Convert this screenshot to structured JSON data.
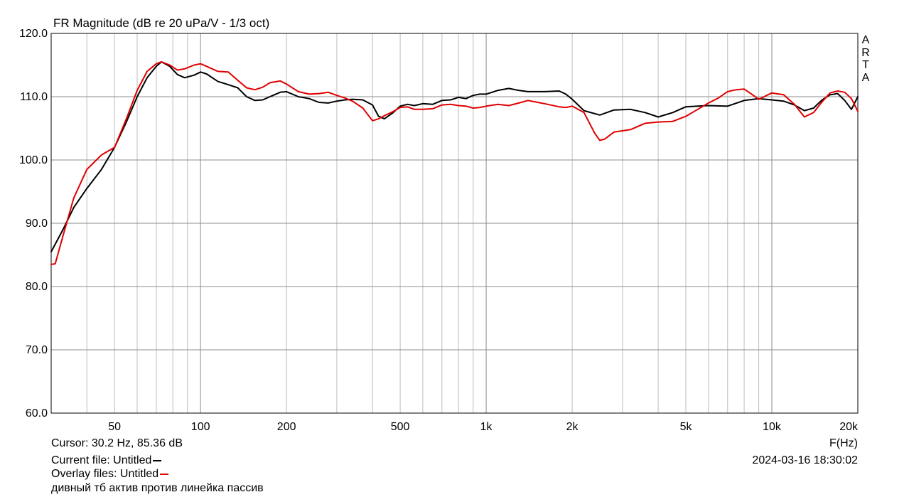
{
  "title": "FR Magnitude (dB re 20 uPa/V - 1/3 oct)",
  "brand": "ARTA",
  "colors": {
    "current": "#000000",
    "overlay": "#e00000",
    "grid_major": "#8c8c8c",
    "grid_minor": "#bdbdbd"
  },
  "footer": {
    "cursor": "Cursor: 30.2 Hz, 85.36 dB",
    "current_file": "Current file: Untitled",
    "overlay_files": "Overlay files: Untitled",
    "comment": "дивный тб актив против линейка пассив",
    "xunit": "F(Hz)",
    "datetime": "2024-03-16  18:30:02"
  },
  "chart_data": {
    "type": "line",
    "title": "FR Magnitude (dB re 20 uPa/V - 1/3 oct)",
    "xlabel": "F(Hz)",
    "ylabel": "",
    "xscale": "log",
    "xlim": [
      30,
      20000
    ],
    "ylim": [
      60,
      120
    ],
    "grid": true,
    "yticks": [
      60,
      70,
      80,
      90,
      100,
      110,
      120
    ],
    "ytick_labels": [
      "60.0",
      "70.0",
      "80.0",
      "90.0",
      "100.0",
      "110.0",
      "120.0"
    ],
    "xticks": [
      50,
      100,
      200,
      500,
      1000,
      2000,
      5000,
      10000,
      20000
    ],
    "xtick_labels": [
      "50",
      "100",
      "200",
      "500",
      "1k",
      "2k",
      "5k",
      "10k",
      "20k"
    ],
    "series": [
      {
        "name": "Untitled",
        "color": "#000000",
        "x": [
          30,
          33,
          36,
          40,
          45,
          50,
          55,
          60,
          65,
          70,
          73,
          78,
          83,
          88,
          95,
          100,
          105,
          115,
          125,
          135,
          145,
          155,
          165,
          175,
          190,
          200,
          220,
          240,
          260,
          280,
          300,
          320,
          340,
          370,
          400,
          420,
          440,
          470,
          500,
          530,
          560,
          600,
          650,
          700,
          750,
          800,
          850,
          900,
          950,
          1000,
          1100,
          1200,
          1300,
          1400,
          1600,
          1800,
          1900,
          2000,
          2200,
          2500,
          2800,
          3200,
          3600,
          4000,
          4500,
          5000,
          5500,
          6000,
          7000,
          8000,
          9000,
          10000,
          11000,
          12000,
          13000,
          14000,
          15000,
          16000,
          17000,
          18000,
          19000,
          20000
        ],
        "y": [
          85.5,
          89,
          92.5,
          95.5,
          98.5,
          102,
          106,
          110,
          113,
          114.8,
          115.5,
          114.8,
          113.5,
          113,
          113.4,
          113.9,
          113.6,
          112.4,
          111.9,
          111.4,
          110,
          109.4,
          109.5,
          110,
          110.7,
          110.8,
          110,
          109.7,
          109.1,
          109,
          109.3,
          109.5,
          109.6,
          109.5,
          108.7,
          106.9,
          106.5,
          107.4,
          108.5,
          108.8,
          108.6,
          108.9,
          108.8,
          109.4,
          109.5,
          109.9,
          109.7,
          110.2,
          110.4,
          110.4,
          111,
          111.3,
          111,
          110.8,
          110.8,
          110.9,
          110.4,
          109.6,
          107.8,
          107.1,
          107.9,
          108,
          107.5,
          106.8,
          107.5,
          108.4,
          108.5,
          108.6,
          108.5,
          109.4,
          109.7,
          109.5,
          109.3,
          108.7,
          107.8,
          108.2,
          109.5,
          110.3,
          110.5,
          109.4,
          108,
          110
        ]
      },
      {
        "name": "Untitled",
        "color": "#e00000",
        "x": [
          30,
          31,
          33,
          36,
          40,
          45,
          50,
          55,
          60,
          65,
          70,
          73,
          78,
          83,
          88,
          95,
          100,
          105,
          115,
          125,
          135,
          145,
          155,
          165,
          175,
          190,
          200,
          220,
          240,
          260,
          280,
          300,
          320,
          340,
          370,
          400,
          420,
          440,
          470,
          500,
          530,
          560,
          600,
          650,
          700,
          750,
          800,
          850,
          900,
          950,
          1000,
          1100,
          1200,
          1300,
          1400,
          1600,
          1800,
          1900,
          2000,
          2200,
          2400,
          2500,
          2600,
          2800,
          3200,
          3600,
          4000,
          4500,
          5000,
          5500,
          6000,
          6500,
          7000,
          7500,
          8000,
          8500,
          9000,
          10000,
          11000,
          12000,
          13000,
          14000,
          15000,
          16000,
          17000,
          18000,
          19000,
          20000
        ],
        "y": [
          83.5,
          83.6,
          88,
          94,
          98.5,
          100.8,
          102,
          106.5,
          111,
          114,
          115.2,
          115.5,
          115,
          114.2,
          114.4,
          115,
          115.2,
          114.8,
          114,
          113.9,
          112.6,
          111.4,
          111.1,
          111.5,
          112.2,
          112.5,
          112,
          110.8,
          110.4,
          110.5,
          110.7,
          110.2,
          109.8,
          109.3,
          108.2,
          106.2,
          106.5,
          107,
          107.6,
          108.3,
          108.4,
          108,
          108,
          108.1,
          108.7,
          108.8,
          108.6,
          108.5,
          108.2,
          108.3,
          108.5,
          108.8,
          108.6,
          109,
          109.4,
          108.9,
          108.4,
          108.3,
          108.5,
          107.5,
          104.2,
          103.1,
          103.3,
          104.4,
          104.8,
          105.8,
          106,
          106.1,
          106.9,
          108,
          109,
          109.8,
          110.8,
          111.1,
          111.2,
          110.4,
          109.6,
          110.6,
          110.3,
          108.8,
          106.8,
          107.5,
          109.2,
          110.6,
          110.9,
          110.7,
          109.7,
          107.7
        ]
      }
    ]
  }
}
